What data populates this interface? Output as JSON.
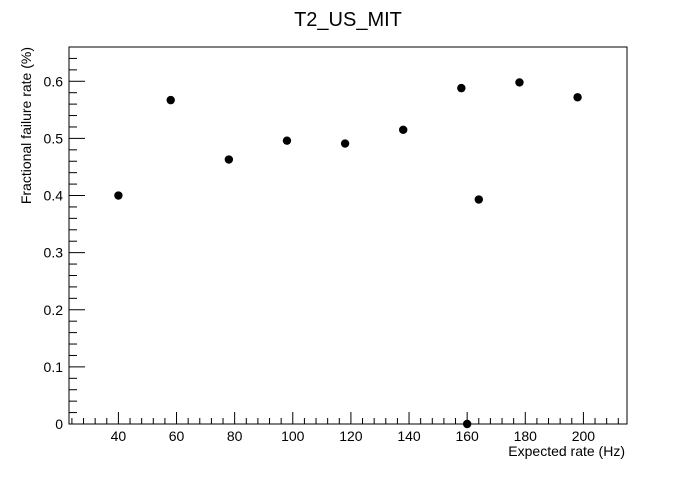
{
  "chart_data": {
    "type": "scatter",
    "title": "T2_US_MIT",
    "xlabel": "Expected rate (Hz)",
    "ylabel": "Fractional failure rate (%)",
    "xlim": [
      23,
      215
    ],
    "ylim": [
      0,
      0.66
    ],
    "x_ticks": [
      40,
      60,
      80,
      100,
      120,
      140,
      160,
      180,
      200
    ],
    "y_ticks": [
      0,
      0.1,
      0.2,
      0.3,
      0.4,
      0.5,
      0.6
    ],
    "x_tick_labels": [
      "40",
      "60",
      "80",
      "100",
      "120",
      "140",
      "160",
      "180",
      "200"
    ],
    "y_tick_labels": [
      "0",
      "0.1",
      "0.2",
      "0.3",
      "0.4",
      "0.5",
      "0.6"
    ],
    "grid": false,
    "legend": "none",
    "marker_color": "#000000",
    "points": [
      {
        "x": 40,
        "y": 0.4
      },
      {
        "x": 58,
        "y": 0.567
      },
      {
        "x": 78,
        "y": 0.463
      },
      {
        "x": 98,
        "y": 0.496
      },
      {
        "x": 118,
        "y": 0.491
      },
      {
        "x": 138,
        "y": 0.515
      },
      {
        "x": 158,
        "y": 0.588
      },
      {
        "x": 160,
        "y": 0.0
      },
      {
        "x": 164,
        "y": 0.393
      },
      {
        "x": 178,
        "y": 0.598
      },
      {
        "x": 198,
        "y": 0.572
      }
    ]
  }
}
